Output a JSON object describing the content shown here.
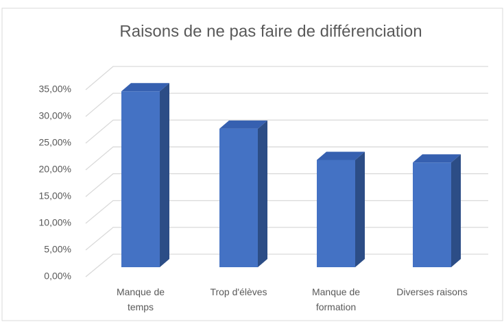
{
  "chart_data": {
    "type": "bar3d",
    "title": "Raisons de ne pas faire de différenciation",
    "categories": [
      "Manque de temps",
      "Trop d'élèves",
      "Manque de formation",
      "Diverses raisons"
    ],
    "values": [
      34.3,
      27,
      20.9,
      20.4
    ],
    "color": "#4472c4",
    "ylim": [
      0,
      35
    ],
    "yticks": [
      {
        "value": 0,
        "label": "0,00%"
      },
      {
        "value": 5,
        "label": "5,00%"
      },
      {
        "value": 10,
        "label": "10,00%"
      },
      {
        "value": 15,
        "label": "15,00%"
      },
      {
        "value": 20,
        "label": "20,00%"
      },
      {
        "value": 25,
        "label": "25,00%"
      },
      {
        "value": 30,
        "label": "30,00%"
      },
      {
        "value": 35,
        "label": "35,00%"
      }
    ],
    "grid": true
  }
}
